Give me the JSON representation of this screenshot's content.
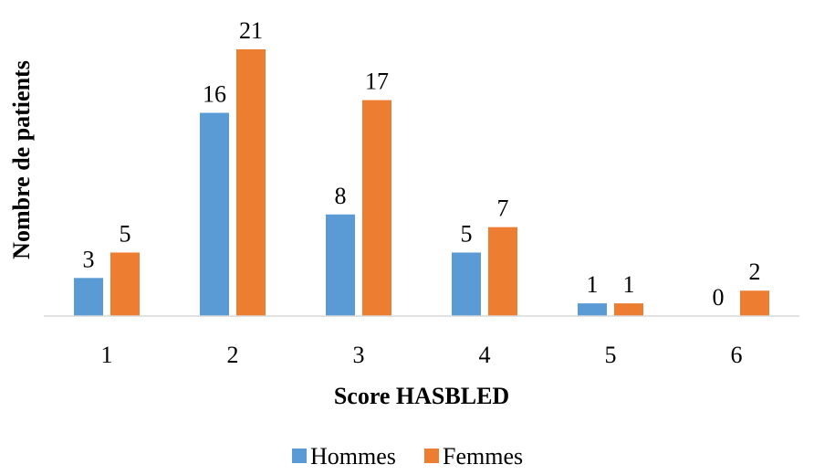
{
  "chart_data": {
    "type": "bar",
    "categories": [
      "1",
      "2",
      "3",
      "4",
      "5",
      "6"
    ],
    "series": [
      {
        "name": "Hommes",
        "values": [
          3,
          16,
          8,
          5,
          1,
          0
        ],
        "color": "#5B9BD5"
      },
      {
        "name": "Femmes",
        "values": [
          5,
          21,
          17,
          7,
          1,
          2
        ],
        "color": "#ED7D31"
      }
    ],
    "xlabel": "Score HASBLED",
    "ylabel": "Nombre de patients",
    "ylim": [
      0,
      21
    ],
    "grid": false,
    "data_labels": true,
    "legend_position": "bottom"
  }
}
